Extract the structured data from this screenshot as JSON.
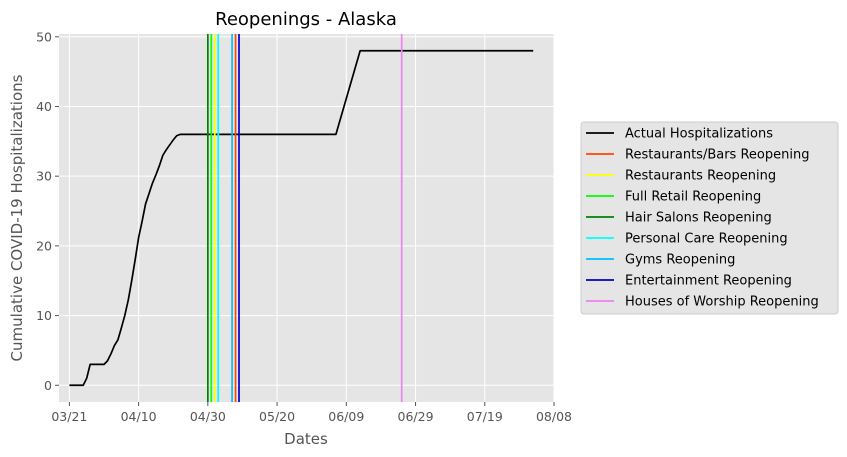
{
  "chart_data": {
    "type": "line",
    "title": "Reopenings - Alaska",
    "xlabel": "Dates",
    "ylabel": "Cumulative COVID-19 Hospitalizations",
    "x_ticks": [
      {
        "date": "2020-03-21",
        "label": "03/21"
      },
      {
        "date": "2020-04-10",
        "label": "04/10"
      },
      {
        "date": "2020-04-30",
        "label": "04/30"
      },
      {
        "date": "2020-05-20",
        "label": "05/20"
      },
      {
        "date": "2020-06-09",
        "label": "06/09"
      },
      {
        "date": "2020-06-29",
        "label": "06/29"
      },
      {
        "date": "2020-07-19",
        "label": "07/19"
      },
      {
        "date": "2020-08-08",
        "label": "08/08"
      }
    ],
    "y_ticks": [
      0,
      10,
      20,
      30,
      40,
      50
    ],
    "xlim": [
      "2020-03-18",
      "2020-08-08"
    ],
    "ylim": [
      -2.4,
      50.4
    ],
    "grid": true,
    "legend_position": "center-right-outside",
    "series": [
      {
        "name": "Actual Hospitalizations",
        "color": "#000000",
        "points": [
          {
            "x": "2020-03-21",
            "y": 0
          },
          {
            "x": "2020-03-25",
            "y": 0
          },
          {
            "x": "2020-03-26",
            "y": 1
          },
          {
            "x": "2020-03-27",
            "y": 3
          },
          {
            "x": "2020-03-31",
            "y": 3
          },
          {
            "x": "2020-04-01",
            "y": 3.5
          },
          {
            "x": "2020-04-02",
            "y": 4.5
          },
          {
            "x": "2020-04-03",
            "y": 5.7
          },
          {
            "x": "2020-04-04",
            "y": 6.5
          },
          {
            "x": "2020-04-05",
            "y": 8.2
          },
          {
            "x": "2020-04-06",
            "y": 10
          },
          {
            "x": "2020-04-07",
            "y": 12.2
          },
          {
            "x": "2020-04-08",
            "y": 15
          },
          {
            "x": "2020-04-09",
            "y": 18
          },
          {
            "x": "2020-04-10",
            "y": 21.2
          },
          {
            "x": "2020-04-11",
            "y": 23.5
          },
          {
            "x": "2020-04-12",
            "y": 26
          },
          {
            "x": "2020-04-13",
            "y": 27.5
          },
          {
            "x": "2020-04-14",
            "y": 29
          },
          {
            "x": "2020-04-15",
            "y": 30.2
          },
          {
            "x": "2020-04-16",
            "y": 31.5
          },
          {
            "x": "2020-04-17",
            "y": 33
          },
          {
            "x": "2020-04-18",
            "y": 33.8
          },
          {
            "x": "2020-04-19",
            "y": 34.5
          },
          {
            "x": "2020-04-20",
            "y": 35.2
          },
          {
            "x": "2020-04-21",
            "y": 35.8
          },
          {
            "x": "2020-04-22",
            "y": 36
          },
          {
            "x": "2020-06-06",
            "y": 36
          },
          {
            "x": "2020-06-13",
            "y": 48
          },
          {
            "x": "2020-08-02",
            "y": 48
          }
        ]
      }
    ],
    "vertical_lines": [
      {
        "name": "Restaurants/Bars Reopening",
        "x": "2020-05-08",
        "color": "#ff4500"
      },
      {
        "name": "Restaurants Reopening",
        "x": "2020-05-02",
        "color": "#ffff00"
      },
      {
        "name": "Full Retail Reopening",
        "x": "2020-05-01",
        "color": "#00ff00"
      },
      {
        "name": "Hair Salons Reopening",
        "x": "2020-04-30",
        "color": "#008000"
      },
      {
        "name": "Personal Care Reopening",
        "x": "2020-05-03",
        "color": "#00ffff"
      },
      {
        "name": "Gyms Reopening",
        "x": "2020-05-07",
        "color": "#00bfff"
      },
      {
        "name": "Entertainment Reopening",
        "x": "2020-05-09",
        "color": "#0000cd"
      },
      {
        "name": "Houses of Worship Reopening",
        "x": "2020-06-25",
        "color": "#ee82ee"
      }
    ]
  }
}
